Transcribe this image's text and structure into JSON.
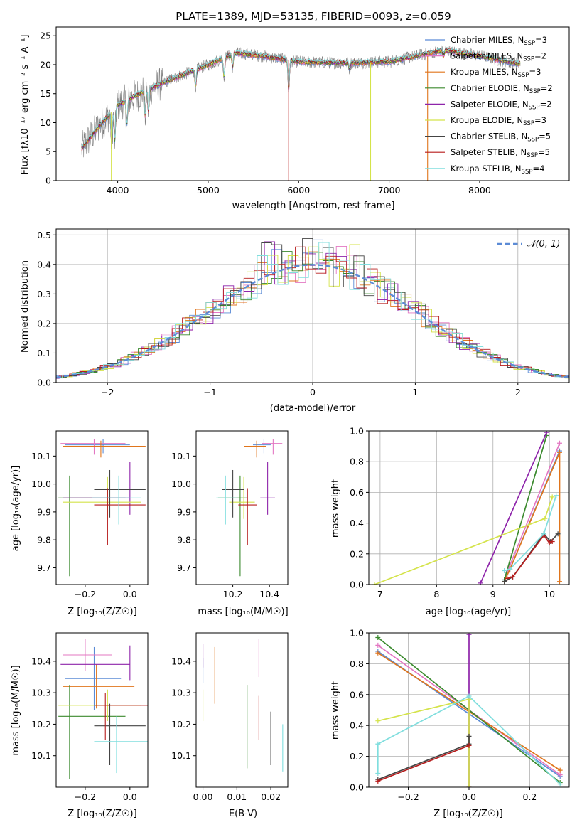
{
  "colors": {
    "Chabrier MILES": "#5b8bd6",
    "Salpeter MILES": "#e377c2",
    "Kroupa MILES": "#e0751c",
    "Chabrier ELODIE": "#3b8a2e",
    "Salpeter ELODIE": "#8e24aa",
    "Kroupa ELODIE": "#d4e34a",
    "Chabrier STELIB": "#444444",
    "Salpeter STELIB": "#b71c1c",
    "Kroupa STELIB": "#80dede"
  },
  "chart_data": [
    {
      "id": "spectrum",
      "type": "line",
      "title": "PLATE=1389, MJD=53135, FIBERID=0093, z=0.059",
      "xlabel": "wavelength [Angstrom, rest frame]",
      "ylabel": "Flux [fλ10⁻¹⁷ erg cm⁻² s⁻¹ A⁻¹]",
      "xlim": [
        3320,
        8990
      ],
      "ylim": [
        0,
        26.5
      ],
      "xticks": [
        4000,
        5000,
        6000,
        7000,
        8000
      ],
      "yticks": [
        0,
        5,
        10,
        15,
        20,
        25
      ],
      "continuum": [
        [
          3600,
          5.5
        ],
        [
          3800,
          9.5
        ],
        [
          4000,
          13
        ],
        [
          4300,
          15.5
        ],
        [
          4600,
          17.5
        ],
        [
          5000,
          20
        ],
        [
          5300,
          22
        ],
        [
          5600,
          21.5
        ],
        [
          6000,
          20.5
        ],
        [
          6500,
          20.3
        ],
        [
          7000,
          20.5
        ],
        [
          7300,
          21.5
        ],
        [
          7600,
          22.5
        ],
        [
          8000,
          21.5
        ],
        [
          8400,
          20.2
        ]
      ],
      "legend": [
        {
          "name": "Chabrier MILES",
          "nssp": "3"
        },
        {
          "name": "Salpeter MILES",
          "nssp": "2"
        },
        {
          "name": "Kroupa MILES",
          "nssp": "3"
        },
        {
          "name": "Chabrier ELODIE",
          "nssp": "2"
        },
        {
          "name": "Salpeter ELODIE",
          "nssp": "2"
        },
        {
          "name": "Kroupa ELODIE",
          "nssp": "3"
        },
        {
          "name": "Chabrier STELIB",
          "nssp": "5"
        },
        {
          "name": "Salpeter STELIB",
          "nssp": "5"
        },
        {
          "name": "Kroupa STELIB",
          "nssp": "4"
        }
      ],
      "legend_placement": "upper-right",
      "grid": false
    },
    {
      "id": "residuals",
      "type": "line",
      "xlabel": "(data-model)/error",
      "ylabel": "Normed distribution",
      "xlim": [
        -2.5,
        2.5
      ],
      "ylim": [
        0,
        0.52
      ],
      "xticks": [
        -2,
        -1,
        0,
        1,
        2
      ],
      "yticks": [
        0.0,
        0.1,
        0.2,
        0.3,
        0.4,
        0.5
      ],
      "legend": [
        "𝒩(0, 1)"
      ],
      "legend_placement": "upper-right",
      "grid": true
    },
    {
      "id": "age-vs-Z",
      "type": "scatter",
      "xlabel": "Z [log₁₀(Z/Z☉)]",
      "ylabel": "age  [log₁₀(age/yr)]",
      "xlim": [
        -0.33,
        0.08
      ],
      "ylim": [
        9.64,
        10.19
      ],
      "xticks": [
        -0.2,
        0.0
      ],
      "yticks": [
        9.7,
        9.8,
        9.9,
        10.0,
        10.1
      ],
      "points": [
        {
          "model": "Chabrier MILES",
          "x": -0.12,
          "y": 10.14,
          "xerr": [
            0.17,
            0.12
          ],
          "yerr": [
            0.03,
            0.02
          ]
        },
        {
          "model": "Salpeter MILES",
          "x": -0.16,
          "y": 10.145,
          "xerr": [
            0.15,
            0.14
          ],
          "yerr": [
            0.04,
            0.015
          ]
        },
        {
          "model": "Kroupa MILES",
          "x": -0.13,
          "y": 10.135,
          "xerr": [
            0.17,
            0.2
          ],
          "yerr": [
            0.04,
            0.02
          ]
        },
        {
          "model": "Chabrier ELODIE",
          "x": -0.27,
          "y": 9.95,
          "xerr": [
            0.05,
            0.25
          ],
          "yerr": [
            0.28,
            0.08
          ]
        },
        {
          "model": "Salpeter ELODIE",
          "x": 0.0,
          "y": 9.95,
          "xerr": [
            0.3,
            0.0
          ],
          "yerr": [
            0.06,
            0.13
          ]
        },
        {
          "model": "Kroupa ELODIE",
          "x": -0.1,
          "y": 9.935,
          "xerr": [
            0.2,
            0.15
          ],
          "yerr": [
            0.06,
            0.09
          ]
        },
        {
          "model": "Chabrier STELIB",
          "x": -0.09,
          "y": 9.98,
          "xerr": [
            0.07,
            0.16
          ],
          "yerr": [
            0.1,
            0.07
          ]
        },
        {
          "model": "Salpeter STELIB",
          "x": -0.1,
          "y": 9.925,
          "xerr": [
            0.06,
            0.17
          ],
          "yerr": [
            0.145,
            0.06
          ]
        },
        {
          "model": "Kroupa STELIB",
          "x": -0.05,
          "y": 9.95,
          "xerr": [
            0.12,
            0.1
          ],
          "yerr": [
            0.095,
            0.08
          ]
        }
      ]
    },
    {
      "id": "age-vs-mass",
      "type": "scatter",
      "xlabel": "mass [log₁₀(M/M☉)]",
      "xlim": [
        10.0,
        10.5
      ],
      "ylim": [
        9.64,
        10.19
      ],
      "xticks": [
        10.2,
        10.4
      ],
      "yticks": [
        9.7,
        9.8,
        9.9,
        10.0,
        10.1
      ],
      "points": [
        {
          "model": "Chabrier MILES",
          "x": 10.37,
          "y": 10.14,
          "xerr": [
            0.06,
            0.04
          ],
          "yerr": [
            0.03,
            0.02
          ]
        },
        {
          "model": "Salpeter MILES",
          "x": 10.42,
          "y": 10.145,
          "xerr": [
            0.06,
            0.05
          ],
          "yerr": [
            0.04,
            0.015
          ]
        },
        {
          "model": "Kroupa MILES",
          "x": 10.33,
          "y": 10.135,
          "xerr": [
            0.07,
            0.05
          ],
          "yerr": [
            0.04,
            0.02
          ]
        },
        {
          "model": "Chabrier ELODIE",
          "x": 10.24,
          "y": 9.95,
          "xerr": [
            0.12,
            0.04
          ],
          "yerr": [
            0.28,
            0.08
          ]
        },
        {
          "model": "Salpeter ELODIE",
          "x": 10.39,
          "y": 9.95,
          "xerr": [
            0.04,
            0.04
          ],
          "yerr": [
            0.06,
            0.13
          ]
        },
        {
          "model": "Kroupa ELODIE",
          "x": 10.26,
          "y": 9.935,
          "xerr": [
            0.08,
            0.06
          ],
          "yerr": [
            0.06,
            0.09
          ]
        },
        {
          "model": "Chabrier STELIB",
          "x": 10.2,
          "y": 9.98,
          "xerr": [
            0.06,
            0.06
          ],
          "yerr": [
            0.1,
            0.07
          ]
        },
        {
          "model": "Salpeter STELIB",
          "x": 10.28,
          "y": 9.925,
          "xerr": [
            0.05,
            0.05
          ],
          "yerr": [
            0.145,
            0.06
          ]
        },
        {
          "model": "Kroupa STELIB",
          "x": 10.16,
          "y": 9.95,
          "xerr": [
            0.05,
            0.06
          ],
          "yerr": [
            0.095,
            0.08
          ]
        }
      ]
    },
    {
      "id": "weight-vs-age",
      "type": "line",
      "xlabel": "age  [log₁₀(age/yr)]",
      "ylabel": "mass weight",
      "xlim": [
        6.8,
        10.35
      ],
      "ylim": [
        0,
        1
      ],
      "xticks": [
        7,
        8,
        9,
        10
      ],
      "yticks": [
        0.0,
        0.2,
        0.4,
        0.6,
        0.8,
        1.0
      ],
      "grid": true,
      "series": [
        {
          "model": "Chabrier MILES",
          "x": [
            9.2,
            9.3,
            10.18
          ],
          "y": [
            0.03,
            0.1,
            0.87
          ]
        },
        {
          "model": "Salpeter MILES",
          "x": [
            9.25,
            10.18
          ],
          "y": [
            0.08,
            0.92
          ]
        },
        {
          "model": "Kroupa MILES",
          "x": [
            9.2,
            9.3,
            10.18,
            10.18
          ],
          "y": [
            0.02,
            0.1,
            0.86,
            0.02
          ]
        },
        {
          "model": "Chabrier ELODIE",
          "x": [
            9.2,
            9.95
          ],
          "y": [
            0.03,
            0.97
          ]
        },
        {
          "model": "Salpeter ELODIE",
          "x": [
            8.78,
            9.95
          ],
          "y": [
            0.01,
            0.99
          ]
        },
        {
          "model": "Kroupa ELODIE",
          "x": [
            6.9,
            9.92,
            10.05
          ],
          "y": [
            0.0,
            0.43,
            0.57
          ]
        },
        {
          "model": "Chabrier STELIB",
          "x": [
            9.2,
            9.35,
            9.9,
            10.02,
            10.15
          ],
          "y": [
            0.02,
            0.05,
            0.33,
            0.28,
            0.33
          ]
        },
        {
          "model": "Salpeter STELIB",
          "x": [
            9.25,
            9.35,
            9.9,
            10.0,
            10.05
          ],
          "y": [
            0.04,
            0.05,
            0.32,
            0.27,
            0.28
          ]
        },
        {
          "model": "Kroupa STELIB",
          "x": [
            9.2,
            9.3,
            9.9,
            10.12
          ],
          "y": [
            0.09,
            0.1,
            0.33,
            0.58
          ]
        }
      ]
    },
    {
      "id": "mass-vs-Z",
      "type": "scatter",
      "xlabel": "Z [log₁₀(Z/Z☉)]",
      "ylabel": "mass [log₁₀(M/M☉)]",
      "xlim": [
        -0.33,
        0.08
      ],
      "ylim": [
        10.0,
        10.49
      ],
      "xticks": [
        -0.2,
        0.0
      ],
      "yticks": [
        10.1,
        10.2,
        10.3,
        10.4
      ],
      "points": [
        {
          "model": "Chabrier MILES",
          "x": -0.16,
          "y": 10.345,
          "xerr": [
            0.13,
            0.12
          ],
          "yerr": [
            0.1,
            0.1
          ]
        },
        {
          "model": "Salpeter MILES",
          "x": -0.2,
          "y": 10.42,
          "xerr": [
            0.1,
            0.12
          ],
          "yerr": [
            0.05,
            0.05
          ]
        },
        {
          "model": "Kroupa MILES",
          "x": -0.15,
          "y": 10.32,
          "xerr": [
            0.15,
            0.17
          ],
          "yerr": [
            0.07,
            0.07
          ]
        },
        {
          "model": "Chabrier ELODIE",
          "x": -0.27,
          "y": 10.225,
          "xerr": [
            0.05,
            0.25
          ],
          "yerr": [
            0.2,
            0.1
          ]
        },
        {
          "model": "Salpeter ELODIE",
          "x": 0.0,
          "y": 10.39,
          "xerr": [
            0.31,
            0.0
          ],
          "yerr": [
            0.05,
            0.06
          ]
        },
        {
          "model": "Kroupa ELODIE",
          "x": -0.1,
          "y": 10.26,
          "xerr": [
            0.22,
            0.15
          ],
          "yerr": [
            0.05,
            0.05
          ]
        },
        {
          "model": "Chabrier STELIB",
          "x": -0.09,
          "y": 10.195,
          "xerr": [
            0.07,
            0.16
          ],
          "yerr": [
            0.125,
            0.07
          ]
        },
        {
          "model": "Salpeter STELIB",
          "x": -0.11,
          "y": 10.26,
          "xerr": [
            0.05,
            0.19
          ],
          "yerr": [
            0.11,
            0.04
          ]
        },
        {
          "model": "Kroupa STELIB",
          "x": -0.06,
          "y": 10.145,
          "xerr": [
            0.1,
            0.15
          ],
          "yerr": [
            0.1,
            0.08
          ]
        }
      ]
    },
    {
      "id": "mass-vs-ebv",
      "type": "scatter",
      "xlabel": "E(B-V)",
      "xlim": [
        -0.002,
        0.025
      ],
      "ylim": [
        10.0,
        10.49
      ],
      "xticks": [
        0.0,
        0.01,
        0.02
      ],
      "yticks": [
        10.1,
        10.2,
        10.3,
        10.4
      ],
      "points": [
        {
          "model": "Chabrier MILES",
          "x": 0.0,
          "y": 10.37,
          "xerr": [
            0,
            0
          ],
          "yerr": [
            0.04,
            0.04
          ]
        },
        {
          "model": "Salpeter MILES",
          "x": 0.0165,
          "y": 10.41,
          "xerr": [
            0,
            0
          ],
          "yerr": [
            0.06,
            0.06
          ]
        },
        {
          "model": "Kroupa MILES",
          "x": 0.0035,
          "y": 10.335,
          "xerr": [
            0,
            0
          ],
          "yerr": [
            0.07,
            0.11
          ]
        },
        {
          "model": "Chabrier ELODIE",
          "x": 0.013,
          "y": 10.18,
          "xerr": [
            0,
            0
          ],
          "yerr": [
            0.12,
            0.145
          ]
        },
        {
          "model": "Salpeter ELODIE",
          "x": 0.0,
          "y": 10.42,
          "xerr": [
            0,
            0
          ],
          "yerr": [
            0.04,
            0.035
          ]
        },
        {
          "model": "Kroupa ELODIE",
          "x": 0.0,
          "y": 10.28,
          "xerr": [
            0,
            0
          ],
          "yerr": [
            0.07,
            0.03
          ]
        },
        {
          "model": "Chabrier STELIB",
          "x": 0.02,
          "y": 10.15,
          "xerr": [
            0,
            0
          ],
          "yerr": [
            0.08,
            0.09
          ]
        },
        {
          "model": "Salpeter STELIB",
          "x": 0.0165,
          "y": 10.22,
          "xerr": [
            0,
            0
          ],
          "yerr": [
            0.07,
            0.07
          ]
        },
        {
          "model": "Kroupa STELIB",
          "x": 0.0235,
          "y": 10.13,
          "xerr": [
            0,
            0
          ],
          "yerr": [
            0.08,
            0.07
          ]
        }
      ]
    },
    {
      "id": "weight-vs-Z",
      "type": "line",
      "xlabel": "Z [log₁₀(Z/Z☉)]",
      "ylabel": "mass weight",
      "xlim": [
        -0.33,
        0.33
      ],
      "ylim": [
        0,
        1
      ],
      "xticks": [
        -0.2,
        0.0,
        0.2
      ],
      "yticks": [
        0.0,
        0.2,
        0.4,
        0.6,
        0.8,
        1.0
      ],
      "grid": true,
      "series": [
        {
          "model": "Chabrier MILES",
          "x": [
            -0.3,
            0.3
          ],
          "y": [
            0.88,
            0.07
          ]
        },
        {
          "model": "Salpeter MILES",
          "x": [
            -0.3,
            0.3
          ],
          "y": [
            0.92,
            0.08
          ]
        },
        {
          "model": "Kroupa MILES",
          "x": [
            -0.3,
            0.3
          ],
          "y": [
            0.87,
            0.11
          ]
        },
        {
          "model": "Chabrier ELODIE",
          "x": [
            -0.3,
            0.3
          ],
          "y": [
            0.97,
            0.03
          ]
        },
        {
          "model": "Salpeter ELODIE",
          "x": [
            0.0,
            0.0
          ],
          "y": [
            0.0,
            0.99
          ]
        },
        {
          "model": "Kroupa ELODIE",
          "x": [
            -0.3,
            0.0,
            0.0
          ],
          "y": [
            0.43,
            0.57,
            0.0
          ]
        },
        {
          "model": "Chabrier STELIB",
          "x": [
            -0.3,
            0.0,
            0.0
          ],
          "y": [
            0.05,
            0.28,
            0.33
          ]
        },
        {
          "model": "Salpeter STELIB",
          "x": [
            -0.3,
            0.0
          ],
          "y": [
            0.04,
            0.27
          ]
        },
        {
          "model": "Kroupa STELIB",
          "x": [
            -0.3,
            -0.3,
            0.0,
            0.3
          ],
          "y": [
            0.09,
            0.28,
            0.59,
            0.02
          ]
        }
      ]
    }
  ]
}
